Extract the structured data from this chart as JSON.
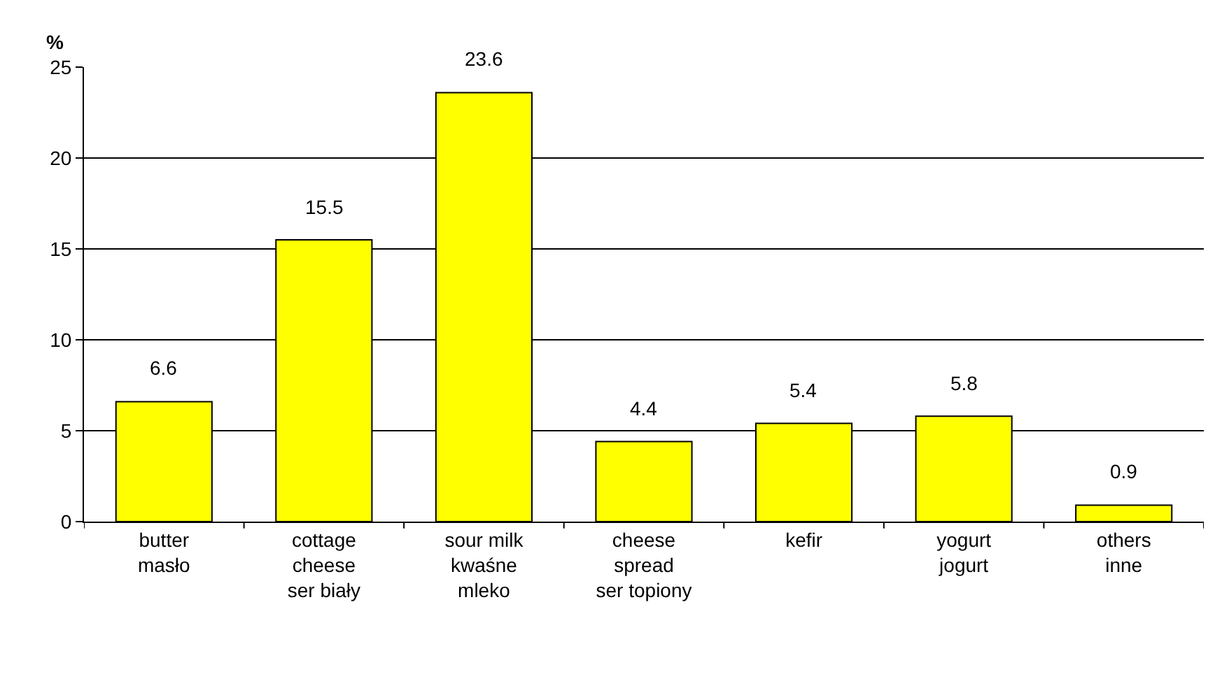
{
  "chart_data": {
    "type": "bar",
    "ylabel": "%",
    "categories": [
      "butter\nmasło",
      "cottage\ncheese\nser biały",
      "sour milk\nkwaśne\nmleko",
      "cheese\nspread\nser topiony",
      "kefir",
      "yogurt\njogurt",
      "others\ninne"
    ],
    "values": [
      6.6,
      15.5,
      23.6,
      4.4,
      5.4,
      5.8,
      0.9
    ],
    "color": "#ffff00",
    "ylim": [
      0,
      25
    ],
    "yticks": [
      0,
      5,
      10,
      15,
      20,
      25
    ],
    "grid": "y",
    "data_labels": true,
    "legend": false
  }
}
